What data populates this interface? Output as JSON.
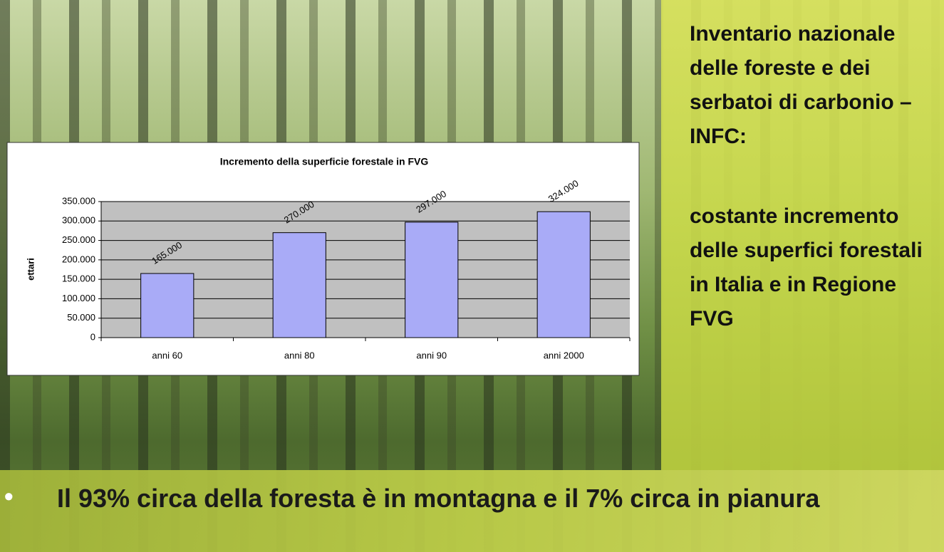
{
  "chart_data": {
    "type": "bar",
    "title": "Incremento della superficie forestale in FVG",
    "ylabel": "ettari",
    "categories": [
      "anni 60",
      "anni 80",
      "anni 90",
      "anni 2000"
    ],
    "values": [
      165000,
      270000,
      297000,
      324000
    ],
    "value_labels": [
      "165.000",
      "270.000",
      "297.000",
      "324.000"
    ],
    "color": "#a9abf7",
    "ylim": [
      0,
      350000
    ],
    "yticks": [
      0,
      {
        "value": 50000,
        "label": "50.000"
      },
      {
        "value": 100000,
        "label": "100.000"
      },
      {
        "value": 150000,
        "label": "150.000"
      },
      {
        "value": 200000,
        "label": "200.000"
      },
      {
        "value": 250000,
        "label": "250.000"
      },
      {
        "value": 300000,
        "label": "300.000"
      },
      {
        "value": 350000,
        "label": "350.000"
      }
    ],
    "grid": true
  },
  "side_text": {
    "heading": "Inventario nazionale delle foreste e dei serbatoi di carbonio – INFC:",
    "body": "costante incremento delle superfici forestali in Italia e in Regione FVG"
  },
  "bullet": "Il 93% circa della foresta è in montagna e il 7% circa in pianura"
}
